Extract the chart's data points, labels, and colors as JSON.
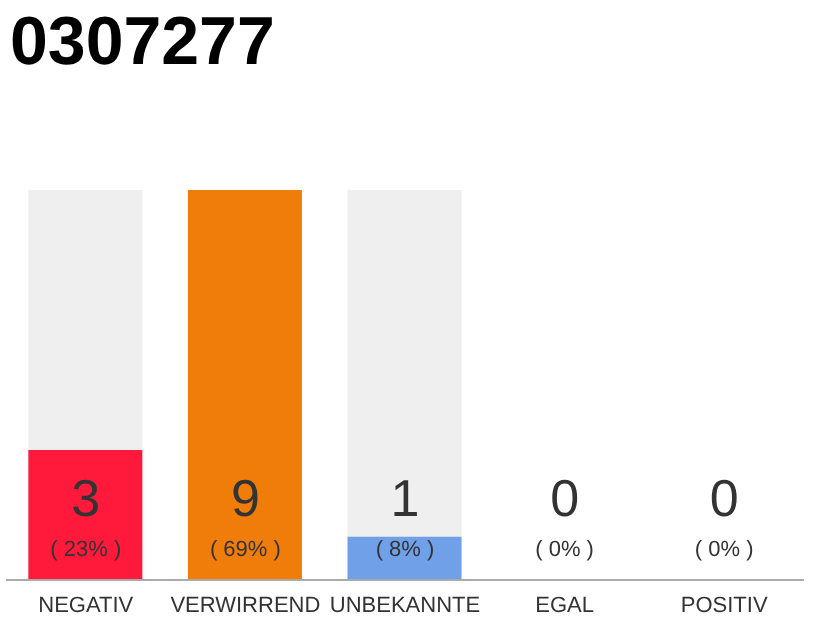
{
  "chart_data": {
    "type": "bar",
    "title": "0307277",
    "categories": [
      "NEGATIV",
      "VERWIRREND",
      "UNBEKANNTE",
      "EGAL",
      "POSITIV"
    ],
    "values": [
      3,
      9,
      1,
      0,
      0
    ],
    "colors": [
      "#ff1a3c",
      "#f07d0a",
      "#6fa0e8",
      "#6fa0e8",
      "#6fa0e8"
    ],
    "tick_labels": "x",
    "value_labels": [
      "3\n( 23% )",
      "9\n( 69% )",
      "1\n( 8% )",
      "0\n( 0% )",
      "0\n( 0% )"
    ]
  }
}
